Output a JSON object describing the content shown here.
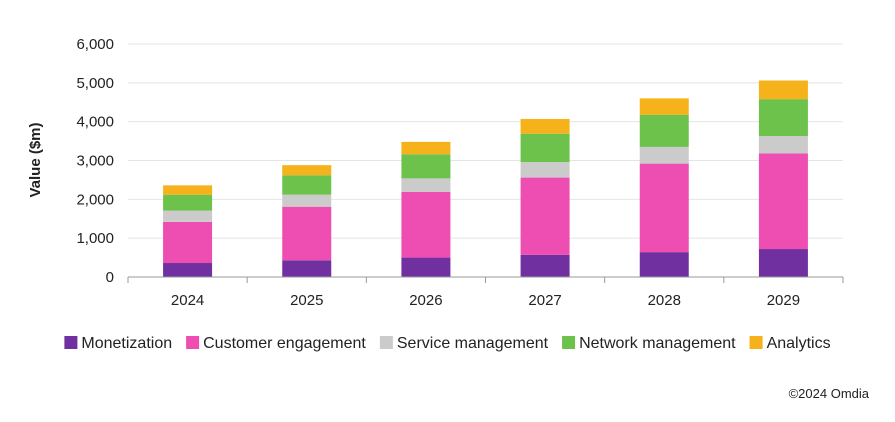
{
  "chart_data": {
    "type": "bar",
    "stacked": true,
    "title": "",
    "xlabel": "",
    "ylabel": "Value ($m)",
    "ylim": [
      0,
      6000
    ],
    "yticks": [
      0,
      1000,
      2000,
      3000,
      4000,
      5000,
      6000
    ],
    "ytick_labels": [
      "0",
      "1,000",
      "2,000",
      "3,000",
      "4,000",
      "5,000",
      "6,000"
    ],
    "grid": true,
    "legend_position": "bottom",
    "categories": [
      "2024",
      "2025",
      "2026",
      "2027",
      "2028",
      "2029"
    ],
    "series": [
      {
        "name": "Monetization",
        "color": "#7030A0",
        "values": [
          360,
          430,
          500,
          570,
          640,
          720
        ]
      },
      {
        "name": "Customer engagement",
        "color": "#EE4EB1",
        "values": [
          1060,
          1380,
          1690,
          1990,
          2280,
          2460
        ]
      },
      {
        "name": "Service management",
        "color": "#CBCBCB",
        "values": [
          290,
          310,
          350,
          400,
          430,
          450
        ]
      },
      {
        "name": "Network management",
        "color": "#6CC24A",
        "values": [
          410,
          500,
          620,
          730,
          830,
          950
        ]
      },
      {
        "name": "Analytics",
        "color": "#F6B21B",
        "values": [
          240,
          260,
          320,
          380,
          420,
          480
        ]
      }
    ]
  },
  "source": "©2024 Omdia"
}
